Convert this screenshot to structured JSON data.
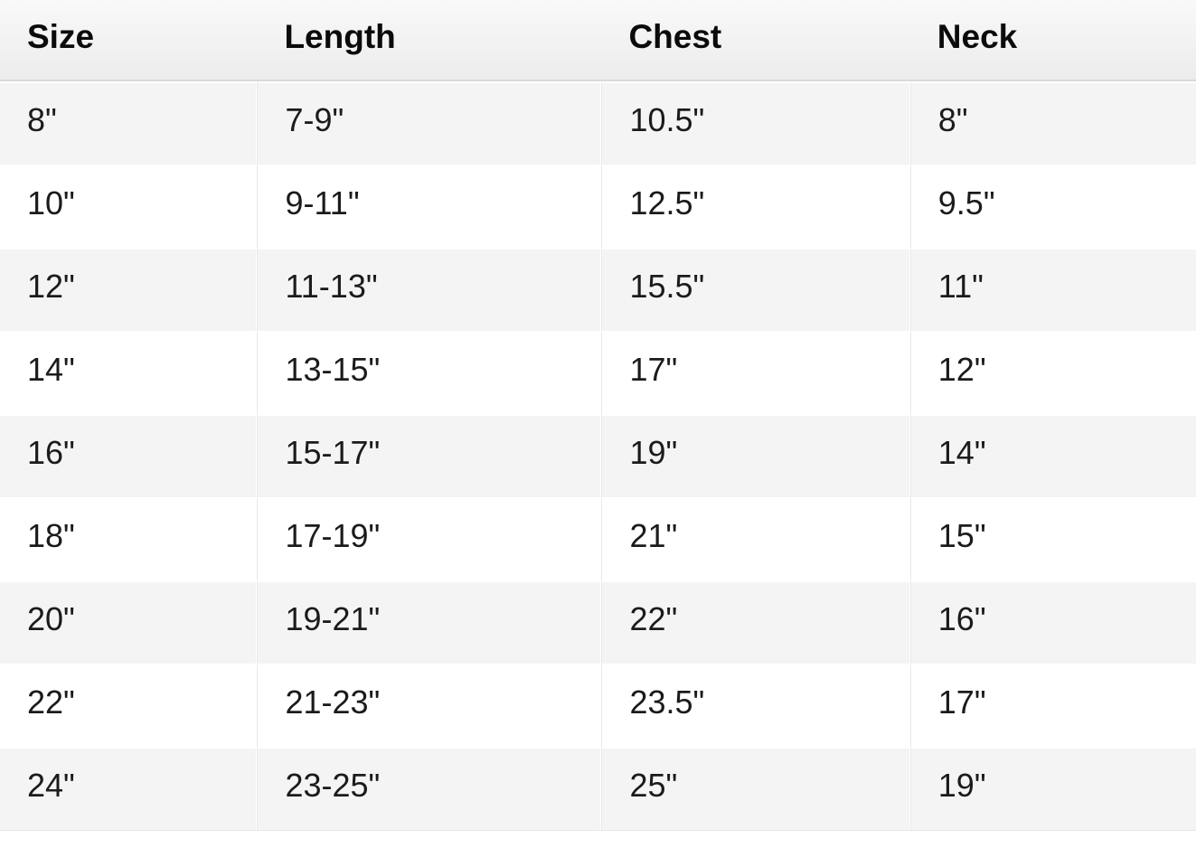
{
  "page": {
    "background": "#ffffff"
  },
  "table": {
    "title": "size-chart",
    "columns": [
      {
        "label": "Size"
      },
      {
        "label": "Length"
      },
      {
        "label": "Chest"
      },
      {
        "label": "Neck"
      }
    ],
    "rows": [
      {
        "cells": [
          "8\"",
          "7-9\"",
          "10.5\"",
          "8\""
        ]
      },
      {
        "cells": [
          "10\"",
          "9-11\"",
          "12.5\"",
          "9.5\""
        ]
      },
      {
        "cells": [
          "12\"",
          "11-13\"",
          "15.5\"",
          "11\""
        ]
      },
      {
        "cells": [
          "14\"",
          "13-15\"",
          "17\"",
          "12\""
        ]
      },
      {
        "cells": [
          "16\"",
          "15-17\"",
          "19\"",
          "14\""
        ]
      },
      {
        "cells": [
          "18\"",
          "17-19\"",
          "21\"",
          "15\""
        ]
      },
      {
        "cells": [
          "20\"",
          "19-21\"",
          "22\"",
          "16\""
        ]
      },
      {
        "cells": [
          "22\"",
          "21-23\"",
          "23.5\"",
          "17\""
        ]
      },
      {
        "cells": [
          "24\"",
          "23-25\"",
          "25\"",
          "19\""
        ]
      }
    ],
    "colors": {
      "header_gradient_top": "#f9f9fa",
      "header_gradient_bottom": "#ececed",
      "header_border": "#d9d9da",
      "row_stripe": "#f4f4f5",
      "row_white": "#ffffff",
      "column_divider": "#e8e8e9",
      "text": "#1b1b1d"
    }
  }
}
